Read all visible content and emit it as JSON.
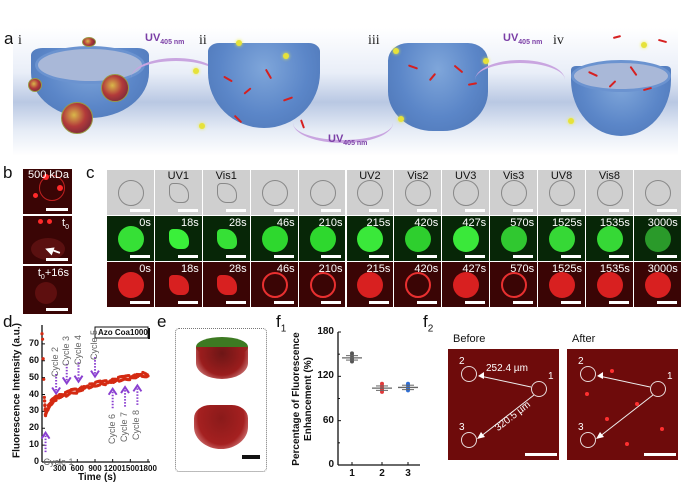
{
  "figure": {
    "panel_labels": {
      "a": "a",
      "b": "b",
      "c": "c",
      "d": "d",
      "e": "e",
      "f1_main": "f",
      "f1_sub": "1",
      "f2_main": "f",
      "f2_sub": "2"
    },
    "panel_a": {
      "stages": [
        "i",
        "ii",
        "iii",
        "iv"
      ],
      "arrows": [
        {
          "main": "UV",
          "sub": "405 nm"
        },
        {
          "main": "UV",
          "sub": "405 nm"
        },
        {
          "main": "UV",
          "sub": "405 nm"
        }
      ]
    },
    "panel_b": {
      "tiles": [
        {
          "label": "500 kDa"
        },
        {
          "label_main": "t",
          "label_sub": "0"
        },
        {
          "label_main": "t",
          "label_sub": "0",
          "label_suffix": "+16s"
        }
      ]
    },
    "panel_c": {
      "column_headers": [
        "",
        "UV1",
        "Vis1",
        "",
        "",
        "UV2",
        "Vis2",
        "UV3",
        "Vis3",
        "UV8",
        "Vis8",
        ""
      ],
      "time_labels": [
        "0s",
        "18s",
        "28s",
        "46s",
        "210s",
        "215s",
        "420s",
        "427s",
        "570s",
        "1525s",
        "1535s",
        "3000s"
      ],
      "rows": [
        "brightfield",
        "green-fluorescence",
        "red-fluorescence"
      ]
    },
    "panel_e": {
      "description": "3D reconstruction, green+red top, red bottom"
    },
    "panel_f2": {
      "before_title": "Before",
      "after_title": "After",
      "distance_1_2": "252.4 µm",
      "distance_1_3": "320.5 µm",
      "markers": [
        "1",
        "2",
        "3"
      ]
    }
  },
  "chart_data": [
    {
      "id": "d",
      "type": "scatter",
      "title": "",
      "xlabel": "Time (s)",
      "ylabel": "Fluorescence Intensity (a.u.)",
      "xlim": [
        0,
        1800
      ],
      "ylim": [
        0,
        80
      ],
      "xticks": [
        "0",
        "300",
        "600",
        "900",
        "1200",
        "1500",
        "1800"
      ],
      "yticks": [
        "0",
        "10",
        "20",
        "30",
        "40",
        "50",
        "60",
        "70"
      ],
      "legend": [
        "Azo Coa1000"
      ],
      "series": [
        {
          "name": "Azo Coa1000",
          "color": "#d42a12",
          "x": [
            0,
            10,
            20,
            30,
            40,
            60,
            100,
            150,
            200,
            250,
            300,
            400,
            500,
            600,
            700,
            800,
            900,
            1000,
            1100,
            1200,
            1300,
            1400,
            1500,
            1600,
            1700,
            1800
          ],
          "y": [
            76,
            72,
            60,
            48,
            38,
            28,
            32,
            35,
            37,
            38,
            39,
            40,
            42,
            42,
            44,
            45,
            46,
            47,
            47,
            48,
            49,
            50,
            50,
            51,
            52,
            51
          ]
        }
      ],
      "annotations": [
        {
          "text": "Cycle 1",
          "x": 60,
          "y": 18,
          "direction": "up"
        },
        {
          "text": "Cycle 2",
          "x": 240,
          "y": 40,
          "direction": "down"
        },
        {
          "text": "Cycle 3",
          "x": 420,
          "y": 46,
          "direction": "down"
        },
        {
          "text": "Cycle 4",
          "x": 620,
          "y": 47,
          "direction": "down"
        },
        {
          "text": "Cycle 5",
          "x": 900,
          "y": 50,
          "direction": "down"
        },
        {
          "text": "Cycle 6",
          "x": 1200,
          "y": 44,
          "direction": "up"
        },
        {
          "text": "Cycle 7",
          "x": 1410,
          "y": 45,
          "direction": "up"
        },
        {
          "text": "Cycle 8",
          "x": 1620,
          "y": 46,
          "direction": "up"
        }
      ],
      "grid": false
    },
    {
      "id": "f1",
      "type": "scatter",
      "title": "",
      "xlabel": "",
      "ylabel": "Percentage of Fluorescence Enhancement (%)",
      "ylim": [
        0,
        180
      ],
      "yticks": [
        "0",
        "60",
        "120",
        "180"
      ],
      "categories": [
        "1",
        "2",
        "3"
      ],
      "series": [
        {
          "name": "1",
          "color": "#555555",
          "mean": 145,
          "values": [
            140,
            143,
            145,
            148,
            151
          ]
        },
        {
          "name": "2",
          "color": "#e0393a",
          "mean": 104,
          "values": [
            99,
            102,
            104,
            107,
            110
          ]
        },
        {
          "name": "3",
          "color": "#2f6fd6",
          "mean": 105,
          "values": [
            101,
            103,
            105,
            108,
            110
          ]
        }
      ],
      "grid": false
    }
  ]
}
